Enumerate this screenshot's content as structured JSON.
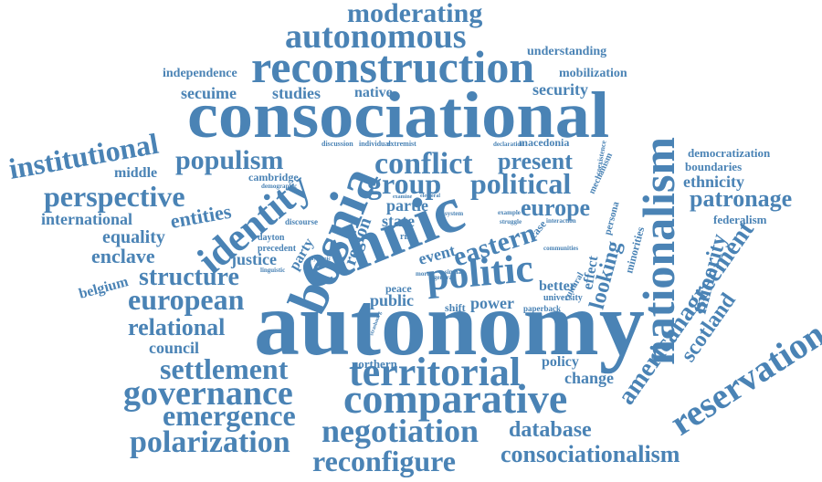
{
  "word_cloud": {
    "color": "#4a83b5",
    "words": [
      {
        "text": "autonomy",
        "size": 100
      },
      {
        "text": "consociational",
        "size": 72
      },
      {
        "text": "ethnic",
        "size": 72
      },
      {
        "text": "bosnia",
        "size": 60
      },
      {
        "text": "nationalism",
        "size": 50
      },
      {
        "text": "reconstruction",
        "size": 50
      },
      {
        "text": "comparative",
        "size": 46
      },
      {
        "text": "territorial",
        "size": 44
      },
      {
        "text": "politic",
        "size": 44
      },
      {
        "text": "identity",
        "size": 44
      },
      {
        "text": "reservation",
        "size": 40
      },
      {
        "text": "governance",
        "size": 38
      },
      {
        "text": "autonomous",
        "size": 38
      },
      {
        "text": "negotiation",
        "size": 36
      },
      {
        "text": "polarization",
        "size": 34
      },
      {
        "text": "conflict",
        "size": 34
      },
      {
        "text": "institutional",
        "size": 32
      },
      {
        "text": "perspective",
        "size": 32
      },
      {
        "text": "group",
        "size": 32
      },
      {
        "text": "political",
        "size": 32
      },
      {
        "text": "settlement",
        "size": 32
      },
      {
        "text": "emergence",
        "size": 32
      },
      {
        "text": "reconfigure",
        "size": 32
      },
      {
        "text": "european",
        "size": 32
      },
      {
        "text": "moderating",
        "size": 30
      },
      {
        "text": "populism",
        "size": 30
      },
      {
        "text": "eastern",
        "size": 30
      },
      {
        "text": "structure",
        "size": 28
      },
      {
        "text": "americanagreement",
        "size": 28
      },
      {
        "text": "patronage",
        "size": 26
      },
      {
        "text": "present",
        "size": 26
      },
      {
        "text": "europe",
        "size": 26
      },
      {
        "text": "consociationalism",
        "size": 26
      },
      {
        "text": "relational",
        "size": 26
      },
      {
        "text": "database",
        "size": 24
      },
      {
        "text": "minority",
        "size": 24
      },
      {
        "text": "looking",
        "size": 24
      },
      {
        "text": "scotland",
        "size": 24
      },
      {
        "text": "entities",
        "size": 22
      },
      {
        "text": "enclave",
        "size": 22
      },
      {
        "text": "equality",
        "size": 20
      },
      {
        "text": "region",
        "size": 20
      },
      {
        "text": "international",
        "size": 18
      },
      {
        "text": "security",
        "size": 18
      },
      {
        "text": "partie",
        "size": 18
      },
      {
        "text": "public",
        "size": 18
      },
      {
        "text": "council",
        "size": 18
      },
      {
        "text": "ethnicity",
        "size": 18
      },
      {
        "text": "secuime",
        "size": 18
      },
      {
        "text": "studies",
        "size": 18
      },
      {
        "text": "state",
        "size": 18
      },
      {
        "text": "event",
        "size": 18
      },
      {
        "text": "power",
        "size": 18
      },
      {
        "text": "justice",
        "size": 18
      },
      {
        "text": "change",
        "size": 18
      },
      {
        "text": "middle",
        "size": 16
      },
      {
        "text": "belgium",
        "size": 16
      },
      {
        "text": "native",
        "size": 16
      },
      {
        "text": "better",
        "size": 16
      },
      {
        "text": "policy",
        "size": 16
      },
      {
        "text": "party",
        "size": 16
      },
      {
        "text": "effect",
        "size": 16
      },
      {
        "text": "understanding",
        "size": 14
      },
      {
        "text": "mobilization",
        "size": 14
      },
      {
        "text": "independence",
        "size": 14
      },
      {
        "text": "democratization",
        "size": 13
      },
      {
        "text": "boundaries",
        "size": 13
      },
      {
        "text": "federalism",
        "size": 13
      },
      {
        "text": "northern",
        "size": 13
      },
      {
        "text": "cambridge",
        "size": 12
      },
      {
        "text": "macedonia",
        "size": 12
      },
      {
        "text": "minorities",
        "size": 12
      },
      {
        "text": "case",
        "size": 12
      },
      {
        "text": "peace",
        "size": 12
      },
      {
        "text": "shift",
        "size": 12
      },
      {
        "text": "persona",
        "size": 11
      },
      {
        "text": "mechanism",
        "size": 10
      },
      {
        "text": "dayton",
        "size": 10
      },
      {
        "text": "precedent",
        "size": 10
      },
      {
        "text": "cultural",
        "size": 10
      },
      {
        "text": "university",
        "size": 10
      },
      {
        "text": "risk",
        "size": 10
      },
      {
        "text": "paperback",
        "size": 9
      },
      {
        "text": "discourse",
        "size": 9
      },
      {
        "text": "coexistence",
        "size": 8
      },
      {
        "text": "discussion",
        "size": 8
      },
      {
        "text": "individual",
        "size": 8
      },
      {
        "text": "extremist",
        "size": 8
      },
      {
        "text": "declaration",
        "size": 7
      },
      {
        "text": "demographic",
        "size": 7
      },
      {
        "text": "linguistic",
        "size": 7
      },
      {
        "text": "interaction",
        "size": 7
      },
      {
        "text": "system",
        "size": 7
      },
      {
        "text": "communities",
        "size": 7
      },
      {
        "text": "example",
        "size": 7
      },
      {
        "text": "struggle",
        "size": 7
      },
      {
        "text": "similar",
        "size": 7
      },
      {
        "text": "general",
        "size": 7
      },
      {
        "text": "more",
        "size": 7
      },
      {
        "text": "electoral",
        "size": 6
      },
      {
        "text": "examine",
        "size": 6
      },
      {
        "text": "dynamic",
        "size": 6
      },
      {
        "text": "strasbourg",
        "size": 6
      }
    ]
  }
}
